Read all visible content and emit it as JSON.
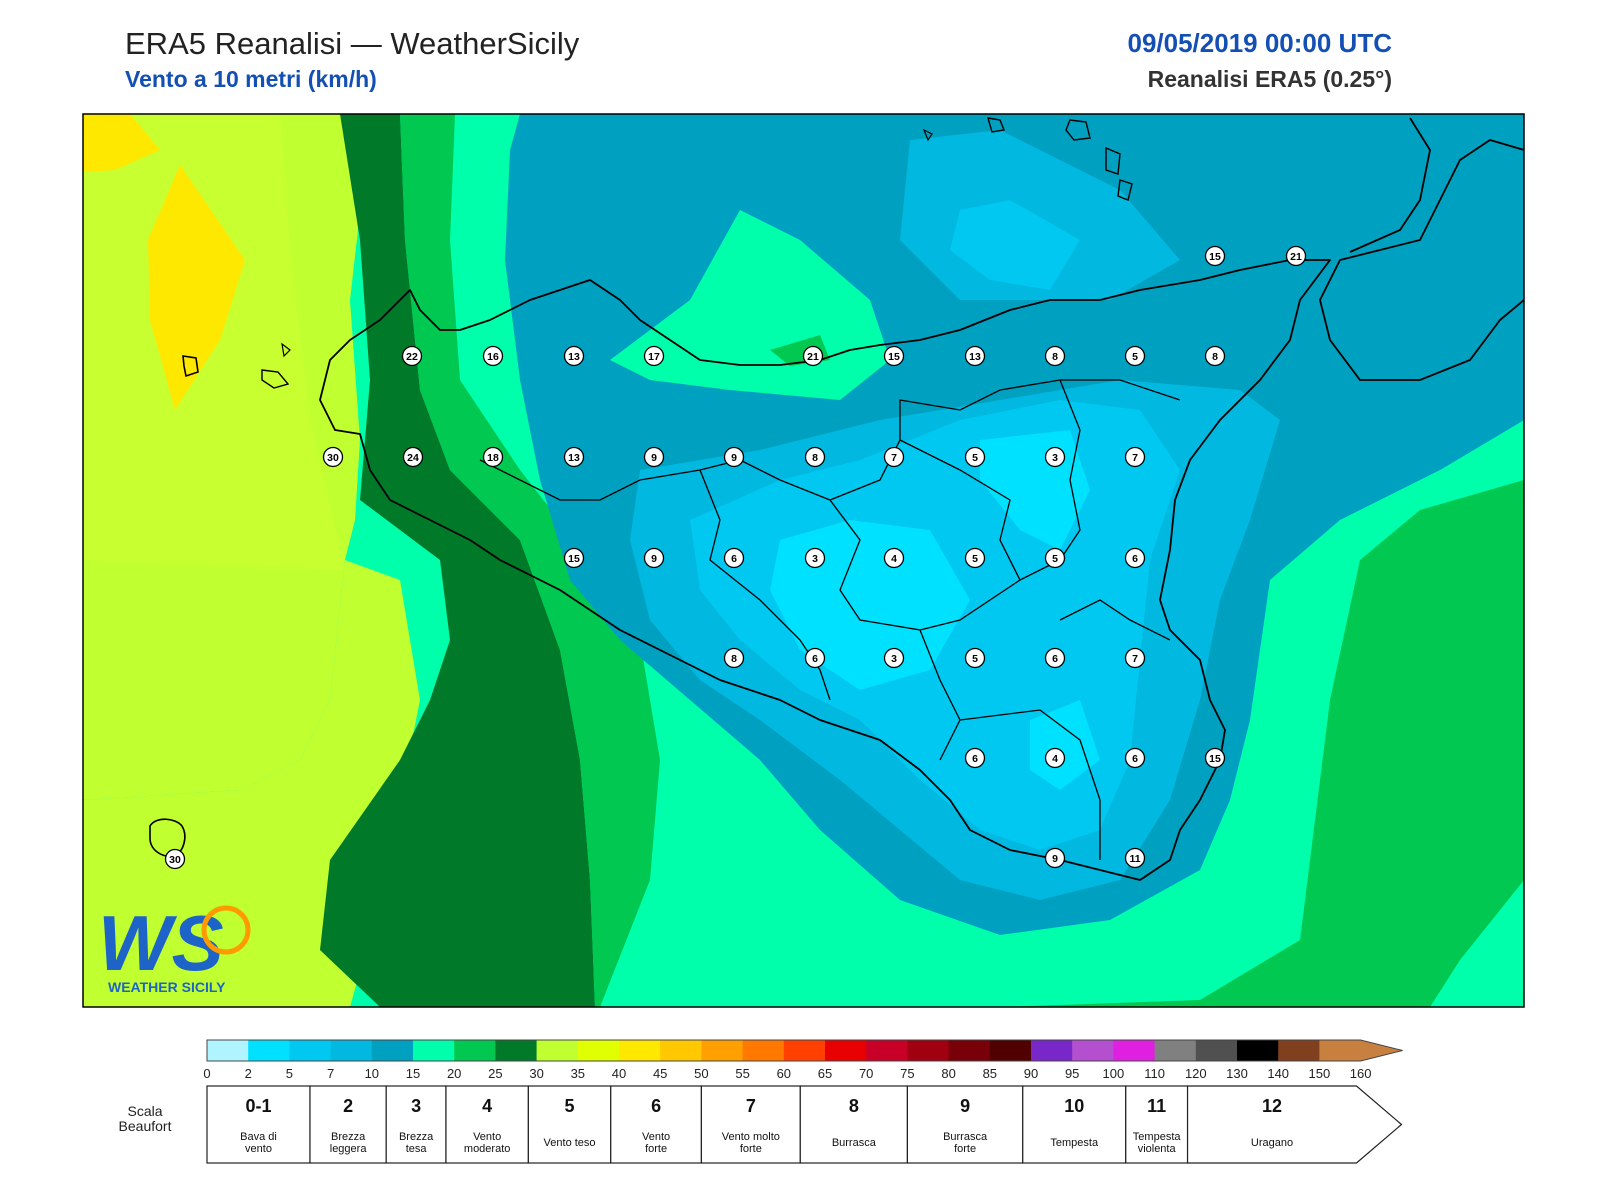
{
  "header": {
    "title": "ERA5 Reanalisi — WeatherSicily",
    "subtitle": "Vento a 10 metri (km/h)",
    "datetime": "09/05/2019 00:00 UTC",
    "model": "Reanalisi ERA5 (0.25°)"
  },
  "logo": {
    "letters": "WS",
    "text": "WEATHER SICILY"
  },
  "station_values": [
    [
      22,
      16,
      13,
      17,
      21,
      15,
      13,
      8,
      5,
      8
    ],
    [
      30,
      24,
      18,
      13,
      9,
      9,
      8,
      7,
      5,
      3,
      7
    ],
    [
      15,
      9,
      6,
      3,
      4,
      5,
      5,
      6
    ],
    [
      8,
      6,
      3,
      5,
      6,
      7
    ],
    [
      6,
      4,
      6,
      15
    ],
    [
      9,
      11
    ],
    [
      15,
      21
    ],
    [
      30
    ]
  ],
  "legend": {
    "ticks": [
      "0",
      "2",
      "5",
      "7",
      "10",
      "15",
      "20",
      "25",
      "30",
      "35",
      "40",
      "45",
      "50",
      "55",
      "60",
      "65",
      "70",
      "75",
      "80",
      "85",
      "90",
      "95",
      "100",
      "110",
      "120",
      "130",
      "140",
      "150",
      "160"
    ],
    "colors": [
      "#b0f4ff",
      "#00e0ff",
      "#00c8f0",
      "#00b8e0",
      "#00a0c0",
      "#00ffaa",
      "#00c850",
      "#007a28",
      "#c0ff30",
      "#e0ff00",
      "#ffe800",
      "#ffc800",
      "#ffa000",
      "#ff7800",
      "#ff4000",
      "#e80000",
      "#c80028",
      "#a00010",
      "#780008",
      "#500000",
      "#7828c8",
      "#b450d0",
      "#e020e0",
      "#808080",
      "#505050",
      "#000000",
      "#804020",
      "#c88040"
    ],
    "beaufort_label": "Scala Beaufort",
    "beaufort": [
      {
        "num": "0-1",
        "desc": "Bava di vento"
      },
      {
        "num": "2",
        "desc": "Brezza leggera"
      },
      {
        "num": "3",
        "desc": "Brezza tesa"
      },
      {
        "num": "4",
        "desc": "Vento moderato"
      },
      {
        "num": "5",
        "desc": "Vento teso"
      },
      {
        "num": "6",
        "desc": "Vento forte"
      },
      {
        "num": "7",
        "desc": "Vento molto forte"
      },
      {
        "num": "8",
        "desc": "Burrasca"
      },
      {
        "num": "9",
        "desc": "Burrasca forte"
      },
      {
        "num": "10",
        "desc": "Tempesta"
      },
      {
        "num": "11",
        "desc": "Tempesta violenta"
      },
      {
        "num": "12",
        "desc": "Uragano"
      }
    ]
  }
}
